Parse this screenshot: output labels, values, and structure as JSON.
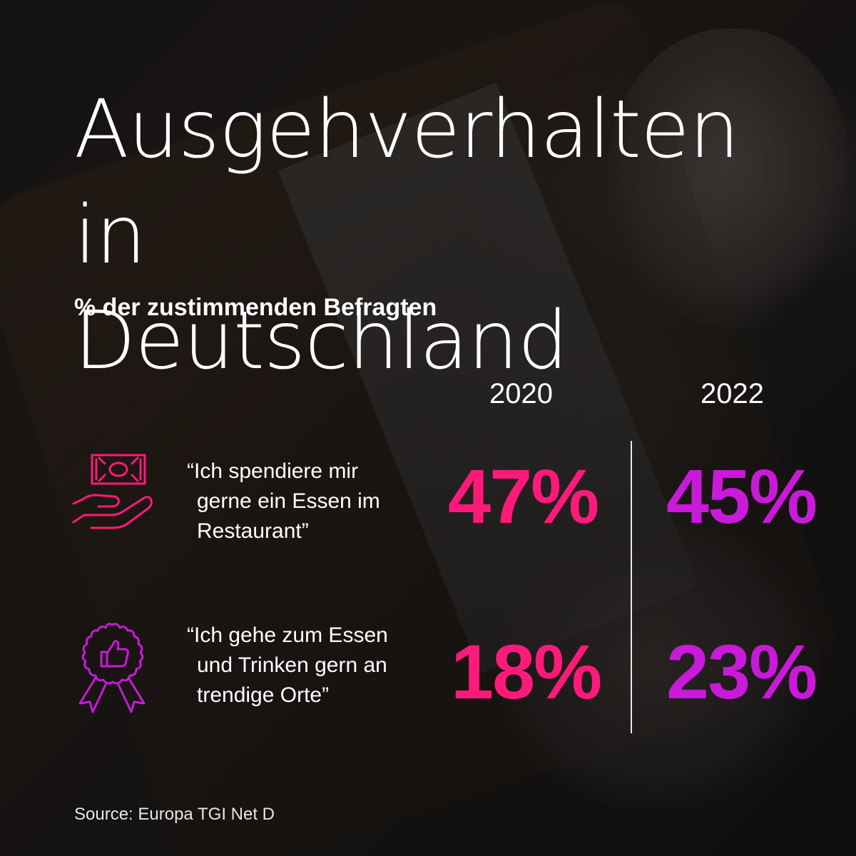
{
  "colors": {
    "accent_2020": "#ff1a7a",
    "accent_2022": "#c81ad8",
    "text": "#ffffff"
  },
  "icons": {
    "row1": "money-hand-icon",
    "row2": "award-thumbs-up-icon"
  },
  "chart_data": {
    "type": "table",
    "title": "Ausgehverhalten in Deutschland",
    "title_lines": [
      "Ausgehverhalten in",
      "Deutschland"
    ],
    "subtitle": "% der zustimmenden Befragten",
    "columns": [
      "2020",
      "2022"
    ],
    "rows": [
      {
        "label_lines": [
          "“Ich spendiere mir",
          "gerne ein Essen im",
          "Restaurant”"
        ],
        "values": [
          47,
          45
        ],
        "display": [
          "47%",
          "45%"
        ]
      },
      {
        "label_lines": [
          "“Ich gehe zum Essen",
          "und Trinken gern an",
          "trendige Orte”"
        ],
        "values": [
          18,
          23
        ],
        "display": [
          "18%",
          "23%"
        ]
      }
    ],
    "unit": "%"
  },
  "source": "Source: Europa TGI Net D"
}
